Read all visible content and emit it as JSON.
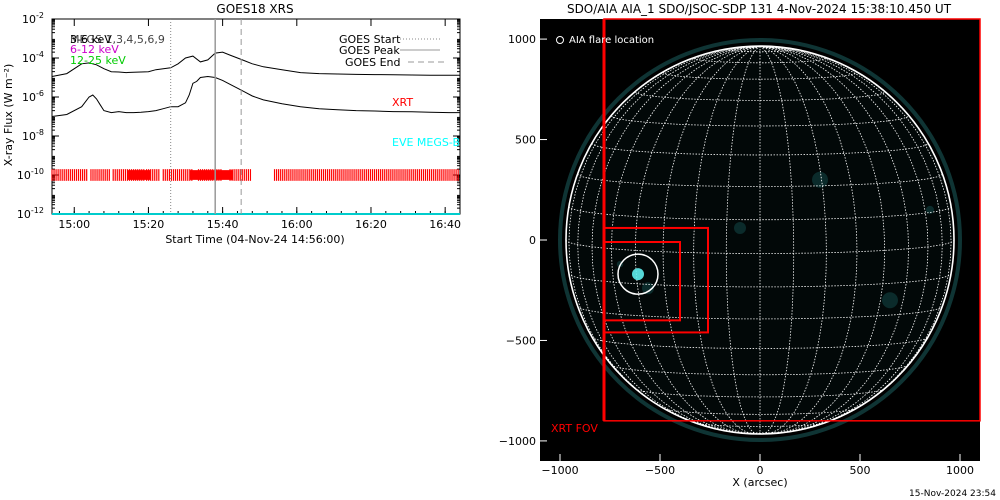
{
  "footer_timestamp": "15-Nov-2024 23:54",
  "chart_data": [
    {
      "type": "line",
      "title": "GOES18 XRS",
      "xlabel": "Start Time (04-Nov-24 14:56:00)",
      "ylabel": "X-ray Flux (W m⁻²)",
      "x_ticks": [
        "15:00",
        "15:20",
        "15:40",
        "16:00",
        "16:20",
        "16:40"
      ],
      "x_tick_minutes": [
        4,
        24,
        44,
        64,
        84,
        104
      ],
      "xlim_minutes": [
        -2,
        108
      ],
      "y_scale": "log",
      "ylim_log10": [
        -12,
        -2
      ],
      "y_ticks": [
        {
          "base": "10",
          "exp": "-12",
          "log": -12
        },
        {
          "base": "10",
          "exp": "-10",
          "log": -10
        },
        {
          "base": "10",
          "exp": "-8",
          "log": -8
        },
        {
          "base": "10",
          "exp": "-6",
          "log": -6
        },
        {
          "base": "10",
          "exp": "-4",
          "log": -4
        },
        {
          "base": "10",
          "exp": "-2",
          "log": -2
        }
      ],
      "channels_text": [
        {
          "text": "3-6 keV",
          "color": "#000000"
        },
        {
          "text": "6-12 keV",
          "color": "#cc00cc"
        },
        {
          "text": "12-25 keV",
          "color": "#00cc00"
        }
      ],
      "overlap_label": "MEGS 1,3,4,5,6,9",
      "legend": {
        "position": "top-right",
        "items": [
          {
            "label": "GOES Start",
            "style": "dotted"
          },
          {
            "label": "GOES Peak",
            "style": "solid"
          },
          {
            "label": "GOES End",
            "style": "dashed"
          }
        ]
      },
      "markers": {
        "goes_start_min": 30,
        "goes_peak_min": 42,
        "goes_end_min": 49
      },
      "series": [
        {
          "color": "#000000",
          "x": [
            -2,
            2,
            6,
            8,
            10,
            12,
            14,
            16,
            18,
            20,
            22,
            24,
            26,
            28,
            30,
            32,
            34,
            36,
            38,
            40,
            42,
            44,
            46,
            48,
            50,
            52,
            55,
            60,
            65,
            70,
            75,
            80,
            85,
            90,
            95,
            100,
            105,
            108
          ],
          "log_values": [
            -4.95,
            -4.8,
            -4.3,
            -4.25,
            -4.35,
            -4.55,
            -4.7,
            -4.72,
            -4.75,
            -4.73,
            -4.72,
            -4.7,
            -4.6,
            -4.55,
            -4.5,
            -4.3,
            -4.0,
            -3.9,
            -4.2,
            -4.1,
            -3.75,
            -3.7,
            -3.85,
            -4.0,
            -4.15,
            -4.3,
            -4.45,
            -4.6,
            -4.75,
            -4.8,
            -4.82,
            -4.84,
            -4.85,
            -4.86,
            -4.87,
            -4.88,
            -4.88,
            -4.88
          ]
        },
        {
          "color": "#000000",
          "x": [
            -2,
            2,
            6,
            8,
            9,
            10,
            11,
            12,
            14,
            16,
            18,
            20,
            22,
            24,
            26,
            28,
            30,
            32,
            34,
            35,
            36,
            37,
            38,
            40,
            42,
            44,
            46,
            48,
            50,
            52,
            55,
            60,
            65,
            70,
            75,
            80,
            85,
            90,
            95,
            100,
            105,
            108
          ],
          "log_values": [
            -7.0,
            -6.9,
            -6.5,
            -6.0,
            -5.9,
            -6.1,
            -6.4,
            -6.7,
            -6.8,
            -6.75,
            -6.8,
            -6.8,
            -6.78,
            -6.75,
            -6.7,
            -6.6,
            -6.5,
            -6.5,
            -6.3,
            -5.9,
            -5.3,
            -5.2,
            -5.0,
            -4.95,
            -5.0,
            -5.15,
            -5.35,
            -5.55,
            -5.75,
            -5.95,
            -6.15,
            -6.35,
            -6.5,
            -6.6,
            -6.65,
            -6.7,
            -6.72,
            -6.75,
            -6.76,
            -6.78,
            -6.8,
            -6.8
          ]
        },
        {
          "color": "#00cccc",
          "x": [
            -2,
            108
          ],
          "log_values": [
            -12.0,
            -12.0
          ]
        }
      ],
      "instrument_labels": [
        {
          "text": "XRT",
          "color": "#ff0000"
        },
        {
          "text": "EVE MEGS-B",
          "color": "#00ffff"
        }
      ],
      "xrt_coverage_min": [
        [
          -2,
          7.5
        ],
        [
          8.5,
          13.5
        ],
        [
          14.5,
          23
        ],
        [
          23.5,
          27
        ],
        [
          28,
          36
        ],
        [
          37.5,
          44
        ],
        [
          46,
          52
        ],
        [
          58,
          108
        ]
      ],
      "xrt_thick_min": [
        [
          18.5,
          24.5
        ],
        [
          35.2,
          46.8
        ]
      ]
    },
    {
      "type": "scatter",
      "title": "SDO/AIA AIA_1 SDO/JSOC-SDP 131   4-Nov-2024 15:38:10.450 UT",
      "xlabel": "X (arcsec)",
      "ylabel": "",
      "x_ticks": [
        "−1000",
        "−500",
        "0",
        "500",
        "1000"
      ],
      "x_tick_values": [
        -1000,
        -500,
        0,
        500,
        1000
      ],
      "y_ticks": [
        "−1000",
        "−500",
        "0",
        "500",
        "1000"
      ],
      "y_tick_values": [
        -1000,
        -500,
        0,
        500,
        1000
      ],
      "xlim": [
        -1100,
        1100
      ],
      "ylim": [
        -1100,
        1100
      ],
      "solar_radius_arcsec": 970,
      "flare_legend": "AIA flare location",
      "flare_location": {
        "x": -610,
        "y": -170
      },
      "xrt_fov_label": "XRT FOV",
      "xrt_fov_box": {
        "x0": -780,
        "y0": -900,
        "x1": 1100,
        "y1": 1100
      },
      "xrt_boxes": [
        {
          "x0": -780,
          "y0": -460,
          "x1": -260,
          "y1": 60
        },
        {
          "x0": -780,
          "y0": -400,
          "x1": -400,
          "y1": -10
        }
      ]
    }
  ]
}
